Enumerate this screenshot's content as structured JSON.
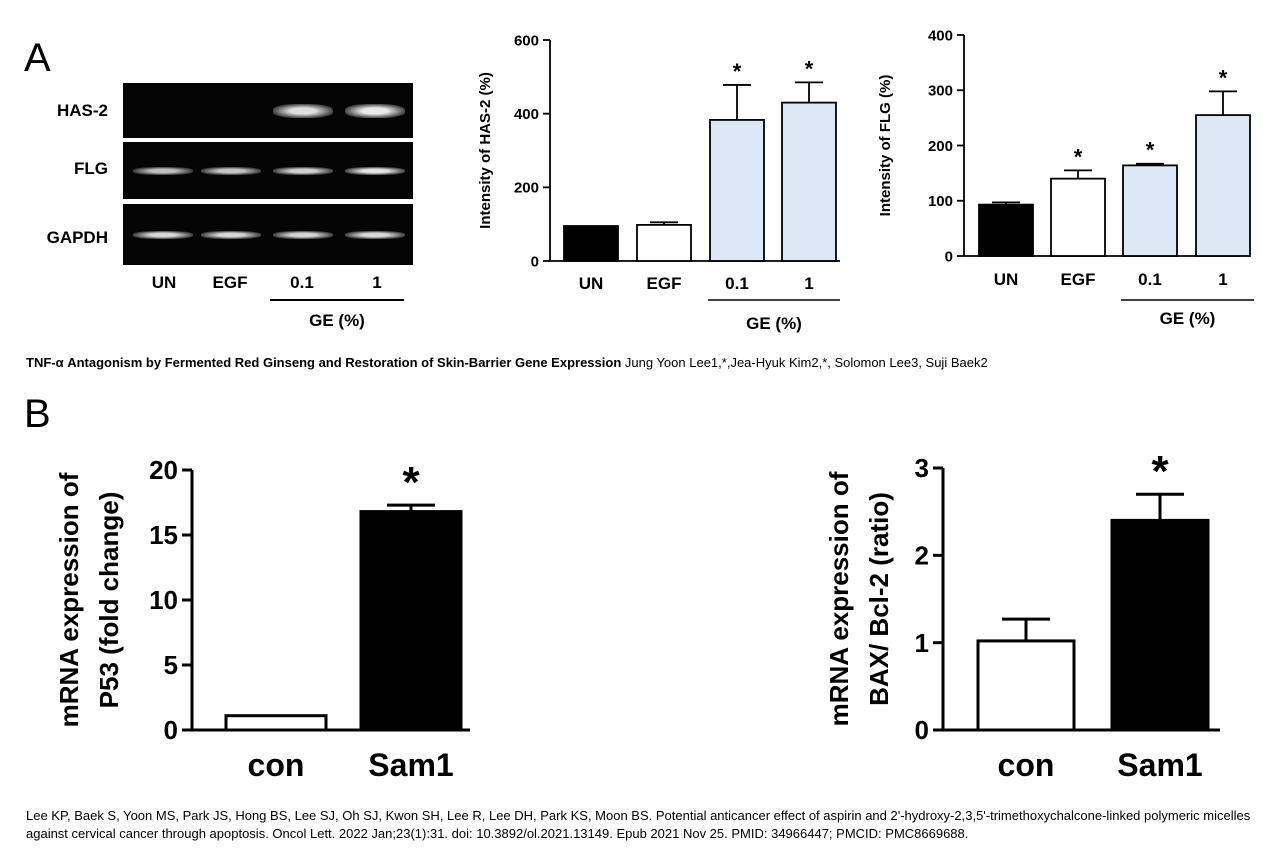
{
  "panels": {
    "a": {
      "letter": "A"
    },
    "b": {
      "letter": "B"
    }
  },
  "blot": {
    "rows": [
      "HAS-2",
      "FLG",
      "GAPDH"
    ],
    "lanes": [
      "UN",
      "EGF",
      "0.1",
      "1"
    ],
    "group_label": "GE (%)",
    "band_intensity": [
      [
        0,
        0,
        0.85,
        0.95
      ],
      [
        0.6,
        0.65,
        0.75,
        0.9
      ],
      [
        0.8,
        0.8,
        0.78,
        0.82
      ]
    ]
  },
  "caption_a": {
    "title": "TNF-α Antagonism by Fermented Red Ginseng and Restoration of Skin-Barrier Gene Expression",
    "authors": "Jung Yoon Lee1,*,Jea-Hyuk Kim2,*, Solomon Lee3, Suji Baek2"
  },
  "caption_b": {
    "text": "Lee KP, Baek S, Yoon MS, Park JS, Hong BS, Lee SJ, Oh SJ, Kwon SH, Lee R, Lee DH, Park KS, Moon BS. Potential anticancer effect of aspirin and 2'-hydroxy-2,3,5'-trimethoxychalcone-linked polymeric micelles against cervical cancer through apoptosis. Oncol Lett. 2022 Jan;23(1):31. doi: 10.3892/ol.2021.13149. Epub 2021 Nov 25. PMID: 34966447; PMCID: PMC8669688."
  },
  "chart_data": [
    {
      "id": "has2",
      "type": "bar",
      "categories": [
        "UN",
        "EGF",
        "0.1",
        "1"
      ],
      "values": [
        95,
        98,
        383,
        430
      ],
      "errors": [
        0,
        7,
        95,
        55
      ],
      "significance": [
        "",
        "",
        "*",
        "*"
      ],
      "fills": [
        "#000000",
        "#ffffff",
        "#dce8f5",
        "#dce8f5"
      ],
      "ylabel": "Intensity of HAS-2 (%)",
      "ylim": [
        0,
        600
      ],
      "yticks": [
        0,
        200,
        400,
        600
      ],
      "group_label": "GE (%)",
      "group_span": [
        2,
        3
      ]
    },
    {
      "id": "flg",
      "type": "bar",
      "categories": [
        "UN",
        "EGF",
        "0.1",
        "1"
      ],
      "values": [
        93,
        140,
        164,
        255
      ],
      "errors": [
        4,
        15,
        3,
        43
      ],
      "significance": [
        "",
        "*",
        "*",
        "*"
      ],
      "fills": [
        "#000000",
        "#ffffff",
        "#dce8f5",
        "#dce8f5"
      ],
      "ylabel": "Intensity of FLG (%)",
      "ylim": [
        0,
        400
      ],
      "yticks": [
        0,
        100,
        200,
        300,
        400
      ],
      "group_label": "GE (%)",
      "group_span": [
        2,
        3
      ]
    },
    {
      "id": "p53",
      "type": "bar",
      "categories": [
        "con",
        "Sam1"
      ],
      "values": [
        1.1,
        16.8
      ],
      "errors": [
        0,
        0.5
      ],
      "significance": [
        "",
        "*"
      ],
      "fills": [
        "#ffffff",
        "#000000"
      ],
      "ylabel": "mRNA expression of P53 (fold change)",
      "ylabel_lines": [
        "mRNA expression of",
        "P53 (fold change)"
      ],
      "ylim": [
        0,
        20
      ],
      "yticks": [
        0,
        5,
        10,
        15,
        20
      ]
    },
    {
      "id": "bax",
      "type": "bar",
      "categories": [
        "con",
        "Sam1"
      ],
      "values": [
        1.02,
        2.4
      ],
      "errors": [
        0.25,
        0.3
      ],
      "significance": [
        "",
        "*"
      ],
      "fills": [
        "#ffffff",
        "#000000"
      ],
      "ylabel": "mRNA expression of BAX/ Bcl-2 (ratio)",
      "ylabel_lines": [
        "mRNA expression of",
        "BAX/ Bcl-2 (ratio)"
      ],
      "ylim": [
        0,
        3
      ],
      "yticks": [
        0,
        1,
        2,
        3
      ]
    }
  ]
}
